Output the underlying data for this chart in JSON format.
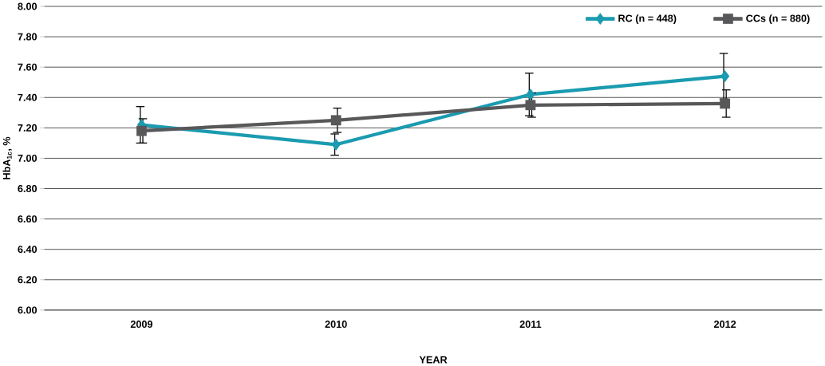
{
  "chart_data": {
    "type": "line",
    "xlabel": "YEAR",
    "ylabel": "HbA$_{1c}$, %",
    "categories": [
      "2009",
      "2010",
      "2011",
      "2012"
    ],
    "series": [
      {
        "name": "RC (n = 448)",
        "color": "#1a9bb0",
        "marker": "diamond",
        "values": [
          7.22,
          7.09,
          7.42,
          7.54
        ],
        "errors": [
          0.12,
          0.07,
          0.14,
          0.15
        ]
      },
      {
        "name": "CCs (n = 880)",
        "color": "#58585a",
        "marker": "square",
        "values": [
          7.18,
          7.25,
          7.35,
          7.36
        ],
        "errors": [
          0.08,
          0.08,
          0.08,
          0.09
        ]
      }
    ],
    "ylim": [
      6.0,
      8.0
    ],
    "yticks": [
      {
        "value": 6.0,
        "label": "6.00"
      },
      {
        "value": 6.2,
        "label": "6.20"
      },
      {
        "value": 6.4,
        "label": "6.40"
      },
      {
        "value": 6.6,
        "label": "6.60"
      },
      {
        "value": 6.8,
        "label": "6.80"
      },
      {
        "value": 7.0,
        "label": "7.00"
      },
      {
        "value": 7.2,
        "label": "7.20"
      },
      {
        "value": 7.4,
        "label": "7.40"
      },
      {
        "value": 7.6,
        "label": "7.60"
      },
      {
        "value": 7.8,
        "label": "7.80"
      },
      {
        "value": 8.0,
        "label": "8.00"
      }
    ],
    "grid": "y",
    "legend": "top right",
    "line_style": "solid"
  }
}
